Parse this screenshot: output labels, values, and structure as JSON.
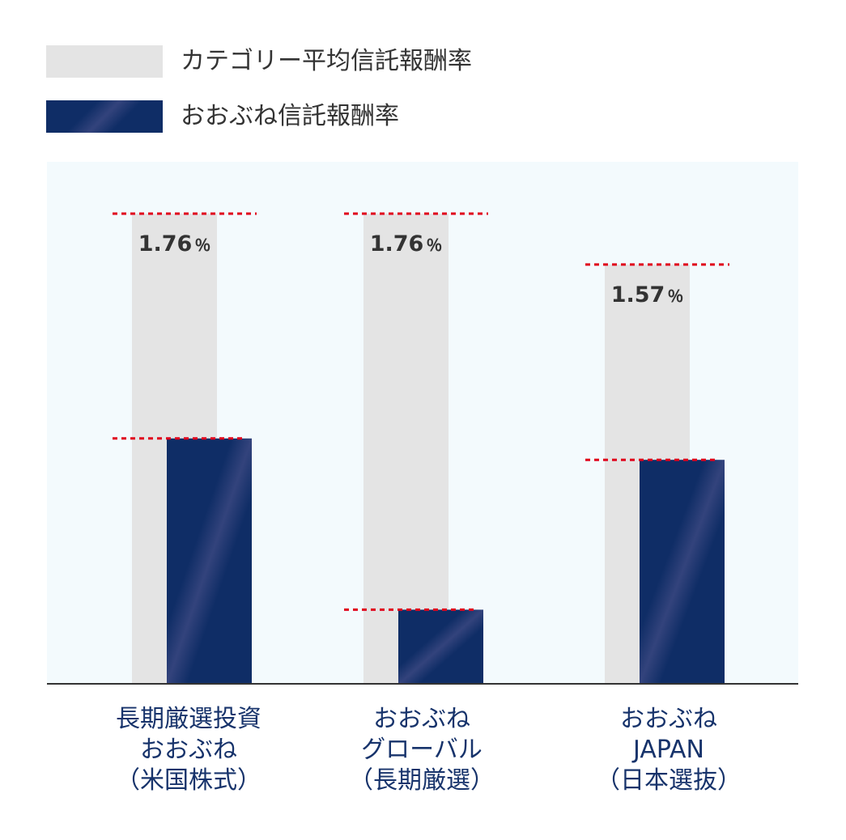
{
  "legend": [
    {
      "label": "カテゴリー平均信託報酬率",
      "color": "#e4e4e4"
    },
    {
      "label": "おおぶね信託報酬率",
      "color": "#0f2d66"
    }
  ],
  "colors": {
    "category_bar": "#e4e4e4",
    "fund_bar": "#0f2d66",
    "fund_bar_highlight": "#33437c",
    "reference_line": "#e0001b",
    "plot_background": "#f3fafd",
    "value_text": "#333333",
    "category_text": "#17336b"
  },
  "chart_data": {
    "type": "bar",
    "categories": [
      [
        "長期厳選投資",
        "おおぶね",
        "（米国株式）"
      ],
      [
        "おおぶね",
        "グローバル",
        "（長期厳選）"
      ],
      [
        "おおぶね",
        "JAPAN",
        "（日本選抜）"
      ]
    ],
    "series": [
      {
        "name": "カテゴリー平均信託報酬率",
        "values": [
          1.76,
          1.76,
          1.57
        ],
        "labels": [
          "1.76％",
          "1.76％",
          "1.57％"
        ]
      },
      {
        "name": "おおぶね信託報酬率",
        "values": [
          0.92,
          0.28,
          0.84
        ]
      }
    ],
    "ylim": [
      0,
      2.0
    ],
    "grid": false,
    "legend_position": "top-left"
  }
}
